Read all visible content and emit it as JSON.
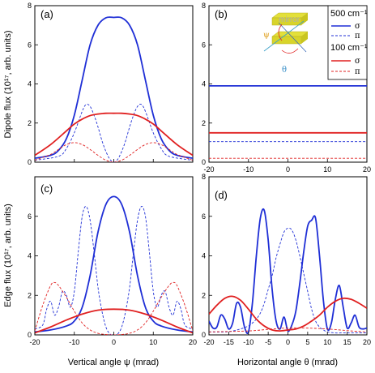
{
  "colors": {
    "blue": "#1f2fd6",
    "red": "#e02020",
    "axis": "#000000"
  },
  "labels": {
    "y_top": "Dipole flux (10¹⁷, arb. units)",
    "y_bottom": "Edge flux (10¹⁷, arb. units)",
    "x_left": "Vertical angle ψ (mrad)",
    "x_right": "Horizontal angle θ (mrad)",
    "inset_mirror": "mirror",
    "inset_psi": "ψ",
    "inset_theta": "θ"
  },
  "legend": {
    "group1": "500 cm⁻¹",
    "group2": "100 cm⁻¹",
    "sigma": "σ",
    "pi": "π"
  },
  "chart_data": [
    {
      "panel": "(a)",
      "type": "line",
      "xlim": [
        -20,
        20
      ],
      "ylim": [
        0,
        8
      ],
      "xticks": [
        "-20",
        "-10",
        "0",
        "10",
        "20"
      ],
      "yticks": [
        "0",
        "2",
        "4",
        "6",
        "8"
      ],
      "series": [
        {
          "group": "500 cm⁻¹",
          "name": "σ",
          "color": "blue",
          "dash": false,
          "x": [
            -20,
            -16,
            -14,
            -12,
            -10,
            -8,
            -6,
            -4,
            -2,
            0,
            2,
            4,
            6,
            8,
            10,
            12,
            14,
            16,
            20
          ],
          "y": [
            0.2,
            0.35,
            0.6,
            1.2,
            2.4,
            4.2,
            6.0,
            7.0,
            7.38,
            7.4,
            7.38,
            7.0,
            6.0,
            4.2,
            2.4,
            1.2,
            0.6,
            0.35,
            0.2
          ]
        },
        {
          "group": "500 cm⁻¹",
          "name": "π",
          "color": "blue",
          "dash": true,
          "x": [
            -20,
            -14,
            -12,
            -10,
            -8,
            -7,
            -6,
            -5,
            -4,
            -3,
            -2,
            -1,
            0,
            1,
            2,
            3,
            4,
            5,
            6,
            7,
            8,
            10,
            12,
            14,
            20
          ],
          "y": [
            0.1,
            0.3,
            0.7,
            1.5,
            2.6,
            2.95,
            2.85,
            2.4,
            1.8,
            1.1,
            0.55,
            0.15,
            0,
            0.15,
            0.55,
            1.1,
            1.8,
            2.4,
            2.85,
            2.95,
            2.6,
            1.5,
            0.7,
            0.3,
            0.1
          ]
        },
        {
          "group": "100 cm⁻¹",
          "name": "σ",
          "color": "red",
          "dash": false,
          "x": [
            -20,
            -16,
            -12,
            -10,
            -8,
            -6,
            -4,
            -2,
            0,
            2,
            4,
            6,
            8,
            10,
            12,
            16,
            20
          ],
          "y": [
            0.35,
            0.9,
            1.6,
            1.95,
            2.2,
            2.38,
            2.46,
            2.5,
            2.5,
            2.5,
            2.46,
            2.38,
            2.2,
            1.95,
            1.6,
            0.9,
            0.35
          ]
        },
        {
          "group": "100 cm⁻¹",
          "name": "π",
          "color": "red",
          "dash": true,
          "x": [
            -20,
            -16,
            -14,
            -12,
            -10,
            -8,
            -6,
            -4,
            -2,
            0,
            2,
            4,
            6,
            8,
            10,
            12,
            14,
            16,
            20
          ],
          "y": [
            0.1,
            0.4,
            0.65,
            0.9,
            1.0,
            0.9,
            0.65,
            0.35,
            0.1,
            0,
            0.1,
            0.35,
            0.65,
            0.9,
            1.0,
            0.9,
            0.65,
            0.4,
            0.1
          ]
        }
      ]
    },
    {
      "panel": "(b)",
      "type": "line",
      "xlim": [
        -20,
        20
      ],
      "ylim": [
        0,
        8
      ],
      "xticks": [
        "-20",
        "-10",
        "0",
        "10",
        "20"
      ],
      "yticks": [
        "0",
        "2",
        "4",
        "6",
        "8"
      ],
      "series": [
        {
          "group": "500 cm⁻¹",
          "name": "σ",
          "color": "blue",
          "dash": false,
          "x": [
            -20,
            20
          ],
          "y": [
            3.9,
            3.9
          ]
        },
        {
          "group": "500 cm⁻¹",
          "name": "π",
          "color": "blue",
          "dash": true,
          "x": [
            -20,
            20
          ],
          "y": [
            1.05,
            1.05
          ]
        },
        {
          "group": "100 cm⁻¹",
          "name": "σ",
          "color": "red",
          "dash": false,
          "x": [
            -20,
            20
          ],
          "y": [
            1.5,
            1.5
          ]
        },
        {
          "group": "100 cm⁻¹",
          "name": "π",
          "color": "red",
          "dash": true,
          "x": [
            -20,
            20
          ],
          "y": [
            0.2,
            0.2
          ]
        }
      ]
    },
    {
      "panel": "(c)",
      "type": "line",
      "xlim": [
        -20,
        20
      ],
      "ylim": [
        0,
        8
      ],
      "xticks": [
        "-20",
        "-10",
        "0",
        "10",
        "20"
      ],
      "yticks": [
        "0",
        "2",
        "4",
        "6"
      ],
      "series": [
        {
          "group": "500 cm⁻¹",
          "name": "σ",
          "color": "blue",
          "dash": false,
          "x": [
            -20,
            -16,
            -12,
            -10,
            -8,
            -6,
            -4,
            -2,
            0,
            2,
            4,
            6,
            8,
            10,
            12,
            16,
            20
          ],
          "y": [
            0.15,
            0.25,
            0.45,
            0.7,
            1.4,
            3.0,
            5.2,
            6.6,
            7.0,
            6.6,
            5.2,
            3.0,
            1.4,
            0.7,
            0.45,
            0.25,
            0.15
          ]
        },
        {
          "group": "500 cm⁻¹",
          "name": "π",
          "color": "blue",
          "dash": true,
          "x": [
            -20,
            -18,
            -17,
            -16,
            -15,
            -14,
            -13,
            -12,
            -11,
            -10,
            -9,
            -8,
            -7,
            -6,
            -5,
            -4,
            -3,
            -2,
            -1,
            0,
            1,
            2,
            3,
            4,
            5,
            6,
            7,
            8,
            9,
            10,
            11,
            12,
            13,
            14,
            15,
            16,
            17,
            18,
            20
          ],
          "y": [
            0.3,
            0.5,
            1.3,
            1.7,
            1.0,
            1.4,
            2.2,
            2.0,
            1.4,
            2.2,
            4.2,
            6.0,
            6.5,
            5.8,
            4.2,
            2.4,
            1.2,
            0.4,
            0.05,
            0,
            0.05,
            0.4,
            1.2,
            2.4,
            4.2,
            5.8,
            6.5,
            6.0,
            4.2,
            2.2,
            1.4,
            2.0,
            2.2,
            1.4,
            1.0,
            1.7,
            1.3,
            0.5,
            0.3
          ]
        },
        {
          "group": "100 cm⁻¹",
          "name": "σ",
          "color": "red",
          "dash": false,
          "x": [
            -20,
            -16,
            -12,
            -8,
            -4,
            0,
            4,
            8,
            12,
            16,
            20
          ],
          "y": [
            0.1,
            0.4,
            0.75,
            1.05,
            1.25,
            1.3,
            1.25,
            1.05,
            0.75,
            0.4,
            0.1
          ]
        },
        {
          "group": "100 cm⁻¹",
          "name": "π",
          "color": "red",
          "dash": true,
          "x": [
            -20,
            -18,
            -16,
            -15,
            -14,
            -12,
            -10,
            -8,
            -6,
            -4,
            -2,
            0,
            2,
            4,
            6,
            8,
            10,
            12,
            14,
            15,
            16,
            18,
            20
          ],
          "y": [
            0.2,
            1.5,
            2.5,
            2.65,
            2.5,
            1.9,
            1.2,
            0.6,
            0.25,
            0.08,
            0.02,
            0,
            0.02,
            0.08,
            0.25,
            0.6,
            1.2,
            1.9,
            2.5,
            2.65,
            2.5,
            1.5,
            0.2
          ]
        }
      ]
    },
    {
      "panel": "(d)",
      "type": "line",
      "xlim": [
        -20,
        20
      ],
      "ylim": [
        0,
        8
      ],
      "xticks": [
        "-20",
        "-15",
        "-10",
        "-5",
        "0",
        "5",
        "10",
        "15",
        "20"
      ],
      "yticks": [
        "0",
        "2",
        "4",
        "6",
        "8"
      ],
      "series": [
        {
          "group": "500 cm⁻¹",
          "name": "σ",
          "color": "blue",
          "dash": false,
          "x": [
            -20,
            -19,
            -18,
            -17,
            -16,
            -15,
            -14,
            -13,
            -12,
            -11,
            -10,
            -9,
            -8,
            -7,
            -6,
            -5,
            -4,
            -3,
            -2,
            -1,
            0,
            1,
            2,
            3,
            4,
            5,
            6,
            7,
            8,
            9,
            10,
            11,
            12,
            13,
            14,
            15,
            16,
            17,
            18,
            19,
            20
          ],
          "y": [
            0.7,
            0.35,
            0.4,
            1.0,
            0.8,
            0.3,
            0.6,
            1.6,
            1.4,
            0.4,
            0.15,
            1.6,
            4.0,
            5.9,
            6.3,
            4.8,
            2.3,
            0.7,
            0.3,
            0.9,
            0.2,
            0.5,
            1.2,
            2.6,
            4.2,
            5.5,
            5.8,
            5.9,
            4.0,
            1.7,
            0.3,
            0.6,
            1.8,
            2.5,
            1.4,
            0.35,
            0.6,
            1.0,
            0.4,
            0.3,
            0.35
          ]
        },
        {
          "group": "500 cm⁻¹",
          "name": "π",
          "color": "blue",
          "dash": true,
          "x": [
            -20,
            -16,
            -14,
            -12,
            -10,
            -9,
            -8,
            -7,
            -6,
            -5,
            -4,
            -3,
            -2,
            -1,
            0,
            1,
            2,
            3,
            4,
            5,
            6,
            7,
            8,
            9,
            10,
            12,
            14,
            16,
            20
          ],
          "y": [
            0.15,
            0.15,
            0.2,
            0.3,
            0.45,
            0.6,
            0.8,
            1.1,
            1.6,
            2.3,
            3.0,
            3.9,
            4.6,
            5.2,
            5.4,
            5.3,
            4.8,
            4.0,
            3.1,
            2.2,
            1.3,
            0.7,
            0.4,
            0.25,
            0.15,
            0.1,
            0.1,
            0.1,
            0.1
          ]
        },
        {
          "group": "100 cm⁻¹",
          "name": "σ",
          "color": "red",
          "dash": false,
          "x": [
            -20,
            -18,
            -16,
            -14,
            -12,
            -10,
            -8,
            -6,
            -4,
            -2,
            0,
            2,
            4,
            6,
            8,
            10,
            12,
            14,
            16,
            18,
            20
          ],
          "y": [
            1.05,
            1.5,
            1.85,
            1.95,
            1.75,
            1.3,
            0.8,
            0.45,
            0.25,
            0.2,
            0.25,
            0.3,
            0.45,
            0.7,
            1.0,
            1.4,
            1.7,
            1.85,
            1.8,
            1.6,
            1.35
          ]
        },
        {
          "group": "100 cm⁻¹",
          "name": "π",
          "color": "red",
          "dash": true,
          "x": [
            -20,
            -10,
            -4,
            0,
            4,
            10,
            16,
            20
          ],
          "y": [
            0.15,
            0.2,
            0.3,
            0.35,
            0.35,
            0.3,
            0.2,
            0.15
          ]
        }
      ]
    }
  ]
}
